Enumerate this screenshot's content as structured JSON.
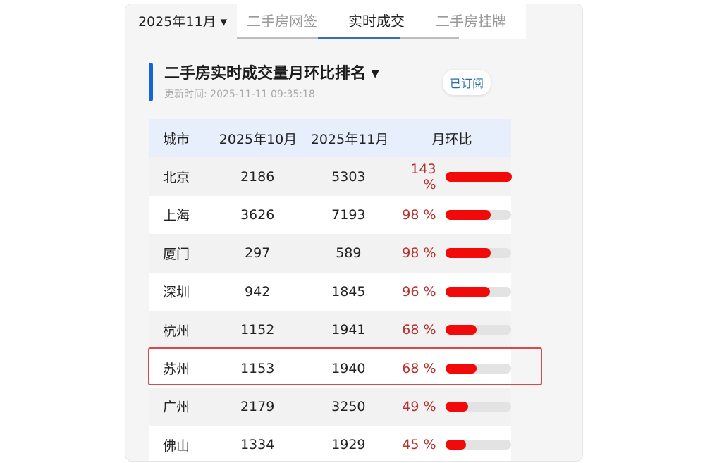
{
  "month_selector": "2025年11月 ▾",
  "tabs": [
    {
      "label": "二手房网签"
    },
    {
      "label": "实时成交"
    },
    {
      "label": "二手房挂牌"
    }
  ],
  "active_tab": "实时成交",
  "section": {
    "title": "二手房实时成交量月环比排名 ▾",
    "updated": "更新时间: 2025-11-11 09:35:18",
    "subscribe": "已订阅",
    "accent_color": "#1565d8"
  },
  "table": {
    "headers": [
      "城市",
      "2025年10月",
      "2025年11月",
      "月环比"
    ],
    "rows": [
      {
        "city": "北京",
        "oct": "2186",
        "nov": "5303",
        "pct": "143 %",
        "value": 143
      },
      {
        "city": "上海",
        "oct": "3626",
        "nov": "7193",
        "pct": "98 %",
        "value": 98
      },
      {
        "city": "厦门",
        "oct": "297",
        "nov": "589",
        "pct": "98 %",
        "value": 98
      },
      {
        "city": "深圳",
        "oct": "942",
        "nov": "1845",
        "pct": "96 %",
        "value": 96
      },
      {
        "city": "杭州",
        "oct": "1152",
        "nov": "1941",
        "pct": "68 %",
        "value": 68
      },
      {
        "city": "苏州",
        "oct": "1153",
        "nov": "1940",
        "pct": "68 %",
        "value": 68,
        "highlighted": true
      },
      {
        "city": "广州",
        "oct": "2179",
        "nov": "3250",
        "pct": "49 %",
        "value": 49
      },
      {
        "city": "佛山",
        "oct": "1334",
        "nov": "1929",
        "pct": "45 %",
        "value": 45
      }
    ]
  },
  "colors": {
    "bar": "#f20a0a",
    "pct_text": "#b5302e",
    "highlight_border": "#d9484a"
  }
}
